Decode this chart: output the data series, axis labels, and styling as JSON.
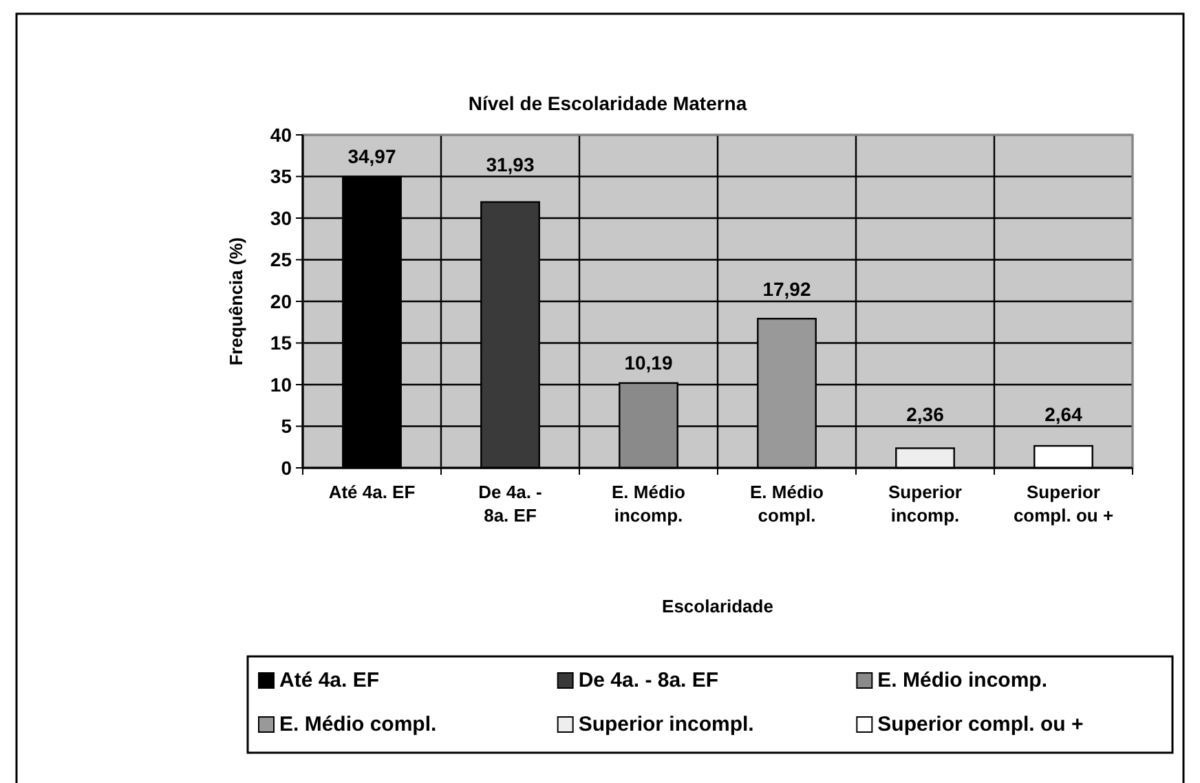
{
  "chart_data": {
    "type": "bar",
    "title": "Nível de Escolaridade Materna",
    "xlabel": "Escolaridade",
    "ylabel": "Frequência (%)",
    "categories": [
      "Até 4a. EF",
      "De 4a. - 8a. EF",
      "E. Médio incomp.",
      "E. Médio compl.",
      "Superior incomp.",
      "Superior compl. ou +"
    ],
    "stacked": true,
    "series": [
      {
        "name": "Até 4a. EF",
        "color": "#000000",
        "values": [
          34.97,
          null,
          null,
          null,
          null,
          null
        ],
        "value_labels": [
          "34,97",
          null,
          null,
          null,
          null,
          null
        ]
      },
      {
        "name": "De 4a. - 8a. EF",
        "color": "#3a3a3a",
        "values": [
          null,
          31.93,
          null,
          null,
          null,
          null
        ],
        "value_labels": [
          null,
          "31,93",
          null,
          null,
          null,
          null
        ]
      },
      {
        "name": "E. Médio incomp.",
        "color": "#8a8a8a",
        "values": [
          null,
          null,
          10.19,
          null,
          null,
          null
        ],
        "value_labels": [
          null,
          null,
          "10,19",
          null,
          null,
          null
        ]
      },
      {
        "name": "E. Médio compl.",
        "color": "#999999",
        "values": [
          null,
          null,
          null,
          17.92,
          null,
          null
        ],
        "value_labels": [
          null,
          null,
          null,
          "17,92",
          null,
          null
        ]
      },
      {
        "name": "Superior incompl.",
        "color": "#eeeeee",
        "values": [
          null,
          null,
          null,
          null,
          2.36,
          null
        ],
        "value_labels": [
          null,
          null,
          null,
          null,
          "2,36",
          null
        ]
      },
      {
        "name": "Superior compl. ou +",
        "color": "#ffffff",
        "values": [
          null,
          null,
          null,
          null,
          null,
          2.64
        ],
        "value_labels": [
          null,
          null,
          null,
          null,
          null,
          "2,64"
        ]
      }
    ],
    "ylim": [
      0,
      40
    ],
    "yticks": [
      0,
      5,
      10,
      15,
      20,
      25,
      30,
      35,
      40
    ],
    "grid": true,
    "legend": "bottom"
  }
}
